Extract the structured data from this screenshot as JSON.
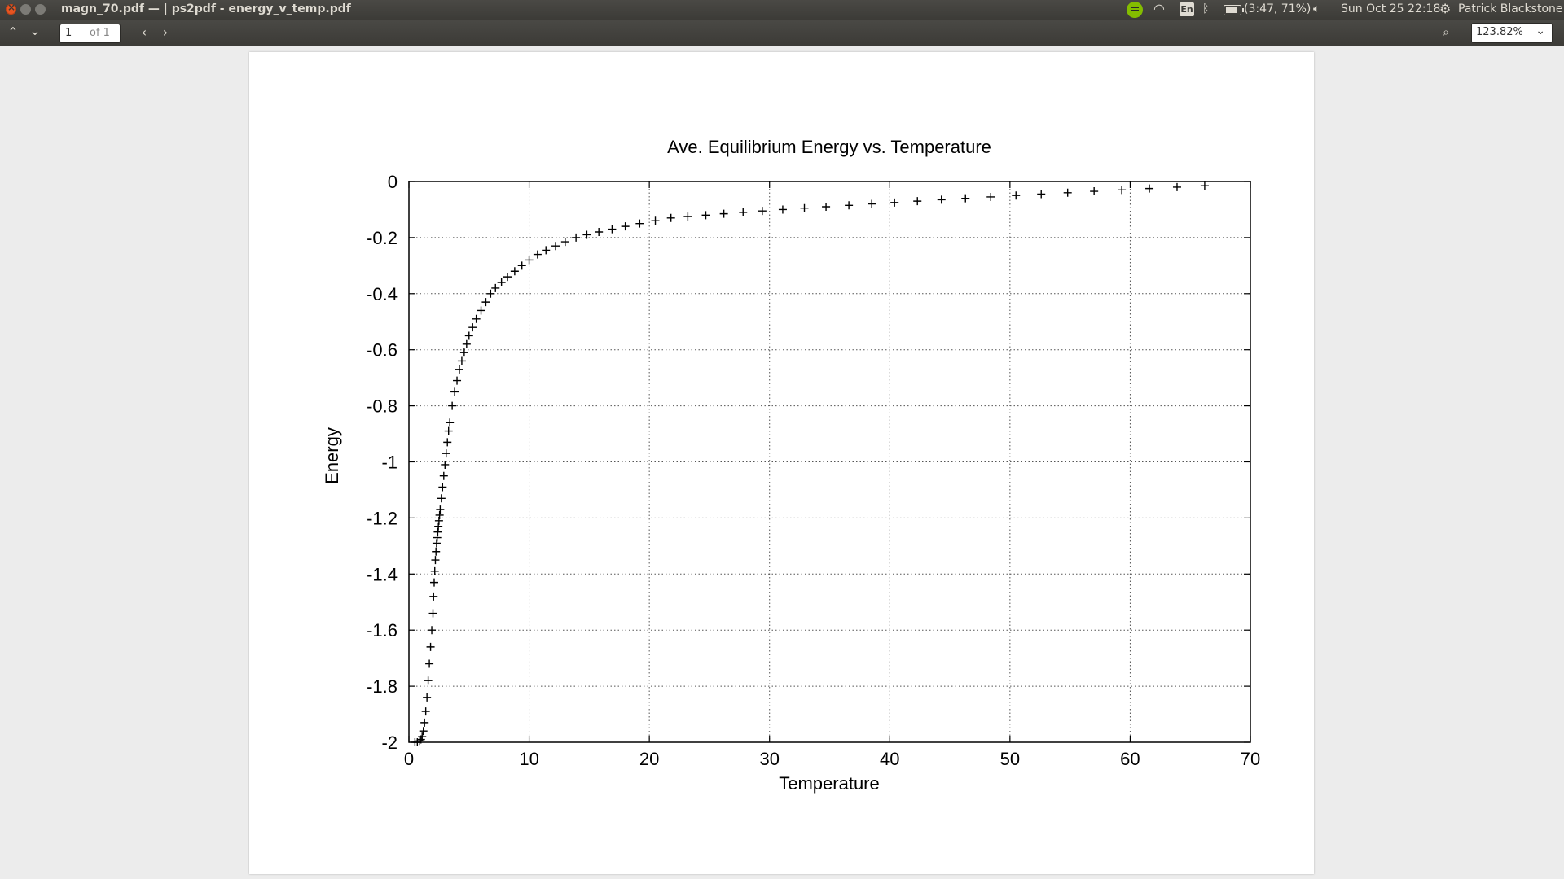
{
  "window": {
    "title": "magn_70.pdf — | ps2pdf - energy_v_temp.pdf"
  },
  "tray": {
    "network_icon": "wifi-icon",
    "language": "En",
    "bluetooth_icon": "bluetooth-icon",
    "battery": "(3:47, 71%)",
    "volume_icon": "speaker-icon",
    "datetime": "Sun Oct 25 22:18",
    "user": "Patrick Blackstone"
  },
  "toolbar": {
    "page_current": "1",
    "page_total": "of 1",
    "zoom": "123.82%"
  },
  "chart_data": {
    "type": "scatter",
    "title": "Ave. Equilibrium Energy vs. Temperature",
    "xlabel": "Temperature",
    "ylabel": "Energy",
    "xlim": [
      0,
      70
    ],
    "ylim": [
      -2,
      0
    ],
    "xticks": [
      "0",
      "10",
      "20",
      "30",
      "40",
      "50",
      "60",
      "70"
    ],
    "yticks": [
      "0",
      "-0.2",
      "-0.4",
      "-0.6",
      "-0.8",
      "-1",
      "-1.2",
      "-1.4",
      "-1.6",
      "-1.8",
      "-2"
    ],
    "grid": true,
    "marker": "+",
    "series": [
      {
        "x": [
          0.5,
          0.7,
          0.9,
          1.0,
          1.1,
          1.2,
          1.3,
          1.4,
          1.5,
          1.6,
          1.7,
          1.8,
          1.9,
          2.0,
          2.05,
          2.1,
          2.15,
          2.2,
          2.25,
          2.3,
          2.35,
          2.4,
          2.45,
          2.5,
          2.55,
          2.6,
          2.7,
          2.8,
          2.9,
          3.0,
          3.1,
          3.2,
          3.3,
          3.4,
          3.6,
          3.8,
          4.0,
          4.2,
          4.4,
          4.6,
          4.8,
          5.0,
          5.3,
          5.6,
          6.0,
          6.4,
          6.8,
          7.2,
          7.7,
          8.2,
          8.8,
          9.4,
          10.0,
          10.7,
          11.4,
          12.2,
          13.0,
          13.9,
          14.8,
          15.8,
          16.9,
          18.0,
          19.2,
          20.5,
          21.8,
          23.2,
          24.7,
          26.2,
          27.8,
          29.4,
          31.1,
          32.9,
          34.7,
          36.6,
          38.5,
          40.4,
          42.3,
          44.3,
          46.3,
          48.4,
          50.5,
          52.6,
          54.8,
          57.0,
          59.3,
          61.6,
          63.9,
          66.2
        ],
        "y": [
          -2.0,
          -2.0,
          -1.995,
          -1.99,
          -1.98,
          -1.96,
          -1.93,
          -1.89,
          -1.84,
          -1.78,
          -1.72,
          -1.66,
          -1.6,
          -1.54,
          -1.48,
          -1.43,
          -1.39,
          -1.35,
          -1.32,
          -1.29,
          -1.27,
          -1.25,
          -1.23,
          -1.21,
          -1.19,
          -1.17,
          -1.13,
          -1.09,
          -1.05,
          -1.01,
          -0.97,
          -0.93,
          -0.89,
          -0.86,
          -0.8,
          -0.75,
          -0.71,
          -0.67,
          -0.64,
          -0.61,
          -0.58,
          -0.55,
          -0.52,
          -0.49,
          -0.46,
          -0.43,
          -0.4,
          -0.38,
          -0.36,
          -0.34,
          -0.32,
          -0.3,
          -0.28,
          -0.26,
          -0.245,
          -0.23,
          -0.215,
          -0.2,
          -0.19,
          -0.18,
          -0.17,
          -0.16,
          -0.15,
          -0.14,
          -0.13,
          -0.125,
          -0.12,
          -0.115,
          -0.11,
          -0.105,
          -0.1,
          -0.095,
          -0.09,
          -0.085,
          -0.08,
          -0.075,
          -0.07,
          -0.065,
          -0.06,
          -0.055,
          -0.05,
          -0.045,
          -0.04,
          -0.035,
          -0.03,
          -0.025,
          -0.02,
          -0.015
        ]
      }
    ]
  }
}
